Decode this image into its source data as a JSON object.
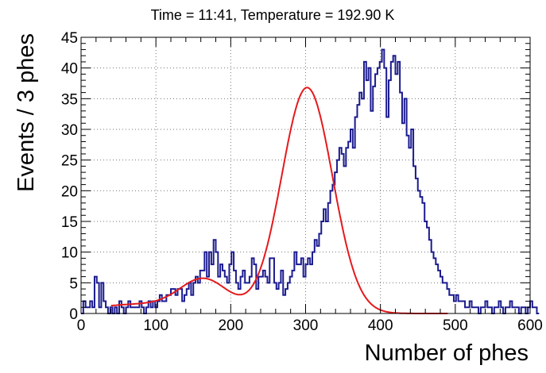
{
  "chart_data": {
    "type": "histogram",
    "title": "Time = 11:41, Temperature = 192.90 K",
    "xlabel": "Number of phes",
    "ylabel": "Events / 3 phes",
    "xlim": [
      0,
      600
    ],
    "ylim": [
      0,
      45
    ],
    "xticks": [
      0,
      100,
      200,
      300,
      400,
      500,
      600
    ],
    "yticks": [
      0,
      5,
      10,
      15,
      20,
      25,
      30,
      35,
      40,
      45
    ],
    "grid": true,
    "bin_width": 3,
    "bin_start": 0,
    "histogram_counts": [
      0,
      2,
      1,
      1,
      2,
      1,
      6,
      5,
      1,
      5,
      2,
      1,
      0,
      1,
      0,
      1,
      0,
      2,
      1,
      0,
      1,
      2,
      1,
      1,
      1,
      1,
      2,
      1,
      0,
      1,
      2,
      1,
      2,
      1,
      2,
      3,
      2,
      2,
      3,
      3,
      4,
      4,
      3,
      4,
      4,
      2,
      3,
      4,
      5,
      3,
      5,
      6,
      5,
      7,
      7,
      10,
      6,
      10,
      8,
      12,
      10,
      6,
      8,
      7,
      6,
      5,
      8,
      10,
      7,
      5,
      4,
      6,
      7,
      5,
      5,
      6,
      9,
      8,
      4,
      6,
      6,
      7,
      6,
      5,
      9,
      9,
      5,
      4,
      5,
      7,
      3,
      4,
      5,
      6,
      7,
      10,
      8,
      8,
      9,
      6,
      8,
      9,
      8,
      10,
      12,
      11,
      13,
      15,
      17,
      15,
      18,
      20,
      21,
      23,
      25,
      27,
      26,
      24,
      27,
      28,
      30,
      27,
      32,
      34,
      36,
      35,
      41,
      38,
      40,
      33,
      37,
      39,
      40,
      41,
      43,
      40,
      32,
      38,
      41,
      42,
      39,
      41,
      36,
      31,
      35,
      29,
      27,
      30,
      24,
      22,
      20,
      19,
      18,
      15,
      14,
      12,
      10,
      9,
      8,
      7,
      6,
      5,
      5,
      4,
      3,
      3,
      2,
      3,
      2,
      2,
      2,
      1,
      1,
      2,
      1,
      1,
      1,
      0,
      1,
      1,
      2,
      1,
      1,
      0,
      1,
      1,
      2,
      1,
      0,
      1,
      1,
      2,
      1,
      1,
      1,
      0,
      1,
      1,
      0,
      1,
      2,
      1,
      1,
      0
    ],
    "fit_curve": {
      "type": "gauss_sum",
      "color": "#e41a1c",
      "xrange": [
        40,
        490
      ],
      "components": [
        {
          "amplitude": 1.5,
          "mean": 80,
          "sigma": 70
        },
        {
          "amplitude": 5.0,
          "mean": 165,
          "sigma": 32
        },
        {
          "amplitude": 36.8,
          "mean": 302,
          "sigma": 34
        }
      ]
    },
    "histogram_color": "#1b1b8f"
  }
}
